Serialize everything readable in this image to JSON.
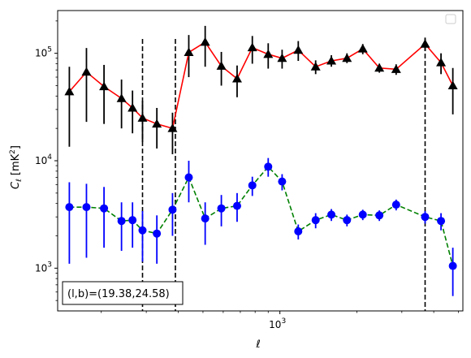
{
  "chart_data": {
    "type": "line",
    "x_scale": "log",
    "y_scale": "log",
    "xlim": [
      135,
      5200
    ],
    "ylim": [
      400,
      250000
    ],
    "xlabel": "ℓ",
    "ylabel": "C_ℓ [mK²]",
    "grid": false,
    "legend": "upper-right (empty box)",
    "x_major_ticks": [
      {
        "value": 1000,
        "base": "10",
        "exp": "3"
      }
    ],
    "y_major_ticks": [
      {
        "value": 1000,
        "base": "10",
        "exp": "3"
      },
      {
        "value": 10000,
        "base": "10",
        "exp": "4"
      },
      {
        "value": 100000,
        "base": "10",
        "exp": "5"
      }
    ],
    "vertical_lines": [
      290,
      390,
      3700
    ],
    "annotation": "(l,b)=(19.38,24.58)",
    "series": [
      {
        "marker": "triangle",
        "marker_color": "#000000",
        "line_color": "#ff0000",
        "line_style": "solid",
        "errbar_color": "#000000",
        "points": [
          {
            "x": 150,
            "y": 44000,
            "lo": 13500,
            "hi": 75000
          },
          {
            "x": 175,
            "y": 67000,
            "lo": 23000,
            "hi": 112000
          },
          {
            "x": 205,
            "y": 49000,
            "lo": 22000,
            "hi": 78000
          },
          {
            "x": 240,
            "y": 38000,
            "lo": 20000,
            "hi": 57000
          },
          {
            "x": 265,
            "y": 31000,
            "lo": 18000,
            "hi": 45000
          },
          {
            "x": 290,
            "y": 25000,
            "lo": 15000,
            "hi": 36000
          },
          {
            "x": 330,
            "y": 22000,
            "lo": 13000,
            "hi": 31000
          },
          {
            "x": 380,
            "y": 20000,
            "lo": 11500,
            "hi": 28000
          },
          {
            "x": 440,
            "y": 102000,
            "lo": 60000,
            "hi": 148000
          },
          {
            "x": 510,
            "y": 127000,
            "lo": 75000,
            "hi": 180000
          },
          {
            "x": 590,
            "y": 76000,
            "lo": 50000,
            "hi": 103000
          },
          {
            "x": 680,
            "y": 58000,
            "lo": 39000,
            "hi": 77000
          },
          {
            "x": 780,
            "y": 113000,
            "lo": 80000,
            "hi": 145000
          },
          {
            "x": 900,
            "y": 98000,
            "lo": 72000,
            "hi": 124000
          },
          {
            "x": 1020,
            "y": 90000,
            "lo": 72000,
            "hi": 108000
          },
          {
            "x": 1180,
            "y": 107000,
            "lo": 85000,
            "hi": 130000
          },
          {
            "x": 1380,
            "y": 75000,
            "lo": 64000,
            "hi": 86000
          },
          {
            "x": 1590,
            "y": 85000,
            "lo": 75000,
            "hi": 96000
          },
          {
            "x": 1830,
            "y": 90000,
            "lo": 81000,
            "hi": 100000
          },
          {
            "x": 2110,
            "y": 110000,
            "lo": 98000,
            "hi": 122000
          },
          {
            "x": 2450,
            "y": 73000,
            "lo": 66000,
            "hi": 80000
          },
          {
            "x": 2850,
            "y": 71000,
            "lo": 63000,
            "hi": 79000
          },
          {
            "x": 3700,
            "y": 122000,
            "lo": 105000,
            "hi": 140000
          },
          {
            "x": 4270,
            "y": 82000,
            "lo": 64000,
            "hi": 100000
          },
          {
            "x": 4750,
            "y": 50000,
            "lo": 27000,
            "hi": 73000
          }
        ]
      },
      {
        "marker": "circle",
        "marker_color": "#0000ff",
        "line_color": "#008000",
        "line_style": "dashed",
        "errbar_color": "#0000ff",
        "points": [
          {
            "x": 150,
            "y": 3700,
            "lo": 1100,
            "hi": 6300
          },
          {
            "x": 175,
            "y": 3700,
            "lo": 1250,
            "hi": 6100
          },
          {
            "x": 205,
            "y": 3600,
            "lo": 1550,
            "hi": 5700
          },
          {
            "x": 240,
            "y": 2750,
            "lo": 1450,
            "hi": 4100
          },
          {
            "x": 265,
            "y": 2800,
            "lo": 1550,
            "hi": 4100
          },
          {
            "x": 290,
            "y": 2250,
            "lo": 1150,
            "hi": 3400
          },
          {
            "x": 330,
            "y": 2100,
            "lo": 1100,
            "hi": 3100
          },
          {
            "x": 380,
            "y": 3500,
            "lo": 2000,
            "hi": 5000
          },
          {
            "x": 440,
            "y": 7000,
            "lo": 4100,
            "hi": 10000
          },
          {
            "x": 510,
            "y": 2900,
            "lo": 1650,
            "hi": 4100
          },
          {
            "x": 590,
            "y": 3600,
            "lo": 2450,
            "hi": 4800
          },
          {
            "x": 680,
            "y": 3800,
            "lo": 2700,
            "hi": 5000
          },
          {
            "x": 780,
            "y": 5900,
            "lo": 4700,
            "hi": 7100
          },
          {
            "x": 900,
            "y": 8800,
            "lo": 7100,
            "hi": 10600
          },
          {
            "x": 1020,
            "y": 6400,
            "lo": 5300,
            "hi": 7500
          },
          {
            "x": 1180,
            "y": 2200,
            "lo": 1850,
            "hi": 2550
          },
          {
            "x": 1380,
            "y": 2800,
            "lo": 2350,
            "hi": 3250
          },
          {
            "x": 1590,
            "y": 3150,
            "lo": 2750,
            "hi": 3550
          },
          {
            "x": 1830,
            "y": 2800,
            "lo": 2450,
            "hi": 3150
          },
          {
            "x": 2110,
            "y": 3150,
            "lo": 2800,
            "hi": 3500
          },
          {
            "x": 2450,
            "y": 3100,
            "lo": 2750,
            "hi": 3450
          },
          {
            "x": 2850,
            "y": 3900,
            "lo": 3450,
            "hi": 4350
          },
          {
            "x": 3700,
            "y": 3000,
            "lo": 2600,
            "hi": 3400
          },
          {
            "x": 4270,
            "y": 2750,
            "lo": 2250,
            "hi": 3250
          },
          {
            "x": 4750,
            "y": 1050,
            "lo": 550,
            "hi": 1550
          }
        ]
      }
    ]
  }
}
